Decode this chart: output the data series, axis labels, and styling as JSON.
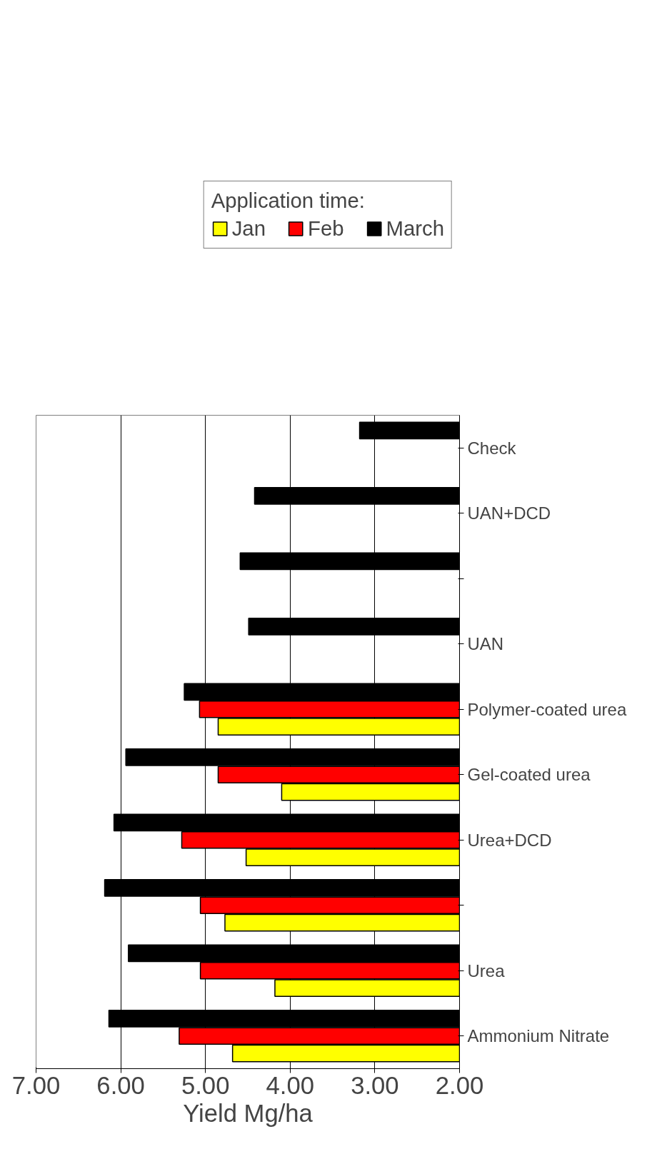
{
  "chart_data": {
    "type": "bar",
    "orientation": "horizontal",
    "xlabel": "Yield Mg/ha",
    "legend_title": "Application time:",
    "legend": "top",
    "grid": "x",
    "categories": [
      "Check",
      "UAN+DCD",
      null,
      "UAN",
      "Polymer-coated urea",
      "Gel-coated urea",
      "Urea+DCD",
      null,
      "Urea",
      "Ammonium Nitrate"
    ],
    "xlim": [
      7,
      2
    ],
    "xticks": [
      {
        "value": 7,
        "label": "7.00"
      },
      {
        "value": 6,
        "label": "6.00"
      },
      {
        "value": 5,
        "label": "5.00"
      },
      {
        "value": 4,
        "label": "4.00"
      },
      {
        "value": 3,
        "label": "3.00"
      },
      {
        "value": 2,
        "label": "2.00"
      }
    ],
    "series": [
      {
        "name": "Jan",
        "color": "#ffff00",
        "values": [
          null,
          null,
          null,
          null,
          4.85,
          4.1,
          4.52,
          4.77,
          4.18,
          4.68
        ]
      },
      {
        "name": "Feb",
        "color": "#ff0000",
        "values": [
          null,
          null,
          null,
          null,
          5.07,
          4.85,
          5.28,
          5.06,
          5.06,
          5.31
        ]
      },
      {
        "name": "March",
        "color": "#000000",
        "values": [
          3.18,
          4.42,
          4.59,
          4.49,
          5.25,
          5.94,
          6.08,
          6.19,
          5.91,
          6.14
        ]
      }
    ]
  }
}
